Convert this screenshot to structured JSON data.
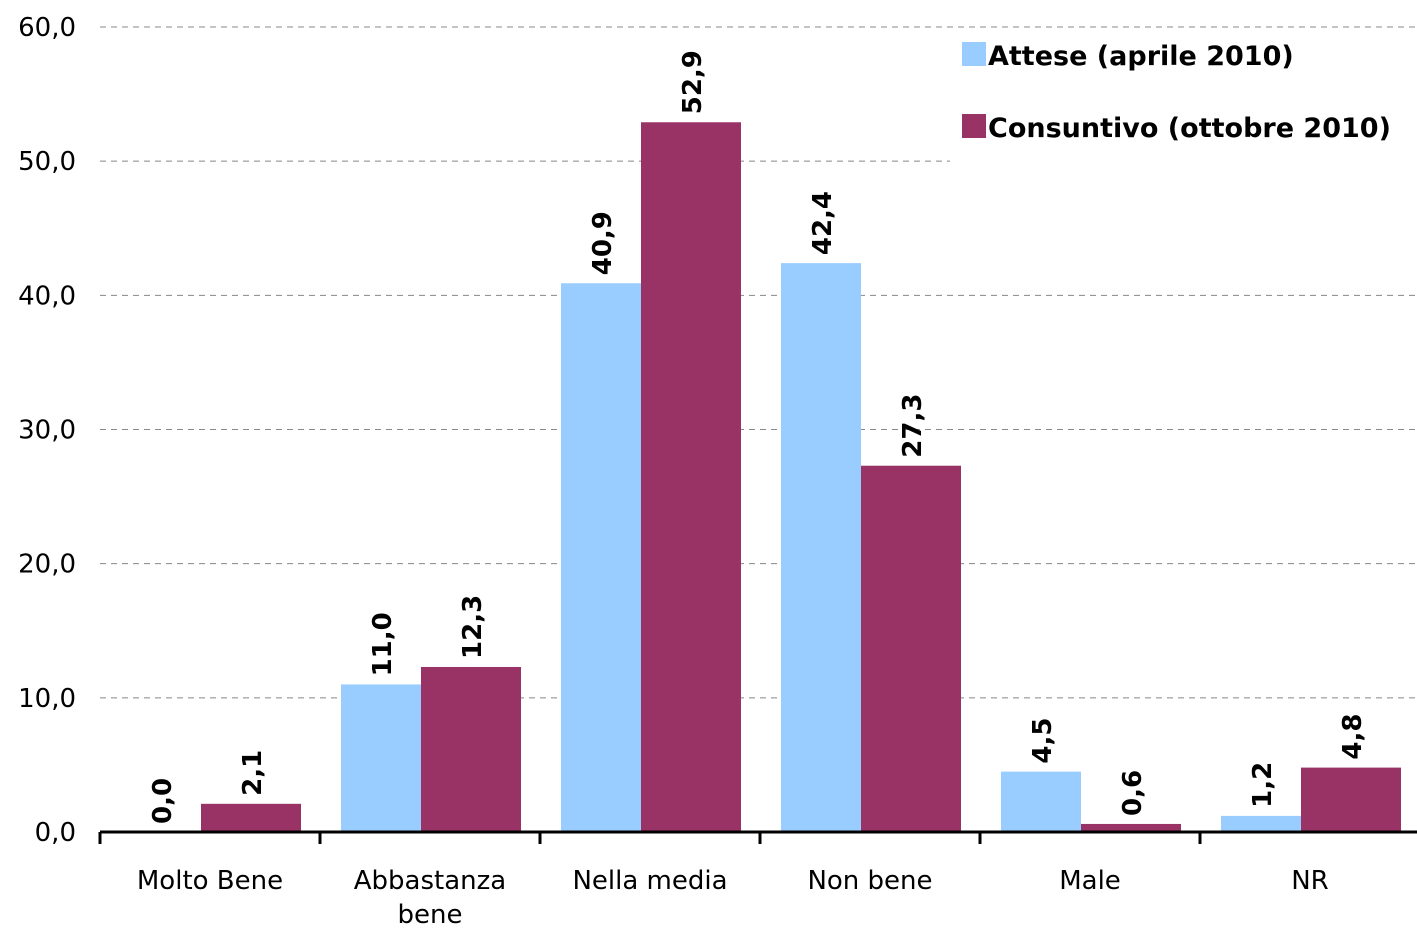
{
  "chart_data": {
    "type": "bar",
    "categories": [
      "Molto Bene",
      "Abbastanza bene",
      "Nella media",
      "Non bene",
      "Male",
      "NR"
    ],
    "series": [
      {
        "name": "Attese (aprile 2010)",
        "color": "#99ccff",
        "values": [
          0.0,
          11.0,
          40.9,
          42.4,
          4.5,
          1.2
        ],
        "value_labels": [
          "0,0",
          "11,0",
          "40,9",
          "42,4",
          "4,5",
          "1,2"
        ]
      },
      {
        "name": "Consuntivo (ottobre 2010)",
        "color": "#993366",
        "values": [
          2.1,
          12.3,
          52.9,
          27.3,
          0.6,
          4.8
        ],
        "value_labels": [
          "2,1",
          "12,3",
          "52,9",
          "27,3",
          "0,6",
          "4,8"
        ]
      }
    ],
    "ylim": [
      0,
      60
    ],
    "yticks": [
      {
        "value": 0,
        "label": "0,0"
      },
      {
        "value": 10,
        "label": "10,0"
      },
      {
        "value": 20,
        "label": "20,0"
      },
      {
        "value": 30,
        "label": "30,0"
      },
      {
        "value": 40,
        "label": "40,0"
      },
      {
        "value": 50,
        "label": "50,0"
      },
      {
        "value": 60,
        "label": "60,0"
      }
    ],
    "grid": true,
    "legend": "top-right"
  }
}
